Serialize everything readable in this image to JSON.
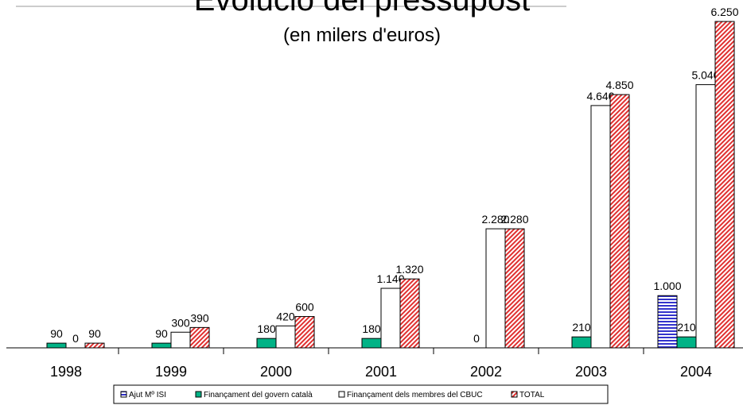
{
  "chart_data": {
    "type": "bar",
    "title": "Evolució del pressupost",
    "subtitle": "(en milers d'euros)",
    "categories": [
      "1998",
      "1999",
      "2000",
      "2001",
      "2002",
      "2003",
      "2004"
    ],
    "series": [
      {
        "name": "Ajut Mº ISI",
        "color": "#3333cc",
        "hatch": "horizontal",
        "values": [
          null,
          null,
          null,
          null,
          null,
          null,
          1000
        ],
        "value_labels": [
          null,
          null,
          null,
          null,
          null,
          null,
          "1.000"
        ]
      },
      {
        "name": "Finançament del govern català",
        "color": "#00b386",
        "hatch": "none",
        "values": [
          90,
          90,
          180,
          180,
          0,
          210,
          210
        ],
        "value_labels": [
          "90",
          "90",
          "180",
          "180",
          "0",
          "210",
          "210"
        ]
      },
      {
        "name": "Finançament dels membres del CBUC",
        "color": "#ffffff",
        "hatch": "none",
        "values": [
          0,
          300,
          420,
          1140,
          2280,
          4640,
          5040
        ],
        "value_labels": [
          "0",
          "300",
          "420",
          "1.140",
          "2.280",
          "4.640",
          "5.040"
        ]
      },
      {
        "name": "TOTAL",
        "color": "#e03030",
        "hatch": "diagonal",
        "values": [
          90,
          390,
          600,
          1320,
          2280,
          4850,
          6250
        ],
        "value_labels": [
          "90",
          "390",
          "600",
          "1.320",
          "2.280",
          "4.850",
          "6.250"
        ]
      }
    ],
    "ylim": [
      0,
      6500
    ]
  }
}
